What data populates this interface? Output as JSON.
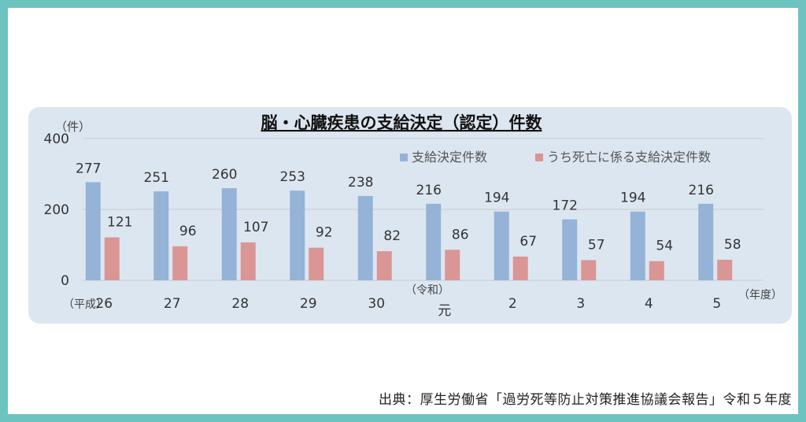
{
  "chart_data": {
    "type": "bar",
    "title": "脳・心臓疾患の支給決定（認定）件数",
    "y_unit": "（件）",
    "x_unit": "（年度）",
    "era_label_start": "（平成）",
    "era_label_reiwa": "（令和）",
    "ylim": [
      0,
      400
    ],
    "yticks": [
      0,
      200,
      400
    ],
    "grid": true,
    "legend_position": "top-right",
    "categories": [
      "26",
      "27",
      "28",
      "29",
      "30",
      "元",
      "2",
      "3",
      "4",
      "5"
    ],
    "series": [
      {
        "name": "支給決定件数",
        "color": "#95b3d7",
        "values": [
          277,
          251,
          260,
          253,
          238,
          216,
          194,
          172,
          194,
          216
        ]
      },
      {
        "name": "うち死亡に係る支給決定件数",
        "color": "#d99694",
        "values": [
          121,
          96,
          107,
          92,
          82,
          86,
          67,
          57,
          54,
          58
        ]
      }
    ]
  },
  "source": "出典：厚生労働省「過労死等防止対策推進協議会報告」令和５年度"
}
